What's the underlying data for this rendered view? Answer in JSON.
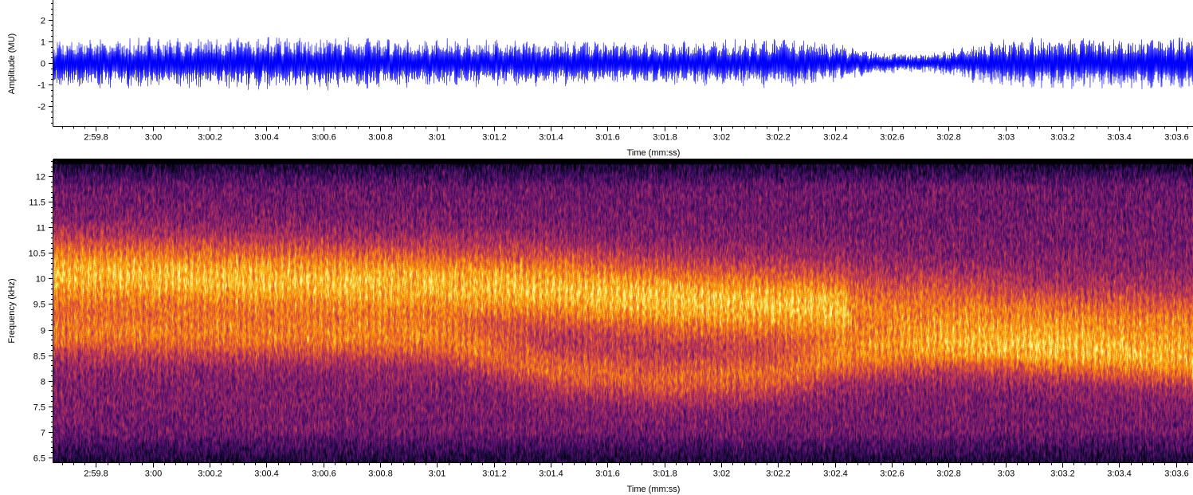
{
  "colors": {
    "waveform": "#0000ff",
    "background": "#ffffff",
    "spectrogram_colormap": [
      "#000004",
      "#1b0c41",
      "#4a0c6b",
      "#781c6d",
      "#a52c60",
      "#cf4446",
      "#ed6925",
      "#fb9b06",
      "#f7d13d",
      "#fcffa4"
    ]
  },
  "chart_data": [
    {
      "type": "line",
      "name": "waveform",
      "ylabel": "Amplitude (MU)",
      "xlabel": "Time (mm:ss)",
      "y_ticks": [
        "-2",
        "-1",
        "0",
        "1",
        "2"
      ],
      "y_tick_values": [
        -2,
        -1,
        0,
        1,
        2
      ],
      "ylim": [
        -2.9,
        2.9
      ],
      "xlim_seconds": [
        179.65,
        183.66
      ],
      "x_tick_labels": [
        "2:59.8",
        "3:00",
        "3:00.2",
        "3:00.4",
        "3:00.6",
        "3:00.8",
        "3:01",
        "3:01.2",
        "3:01.4",
        "3:01.6",
        "3:01.8",
        "3:02",
        "3:02.2",
        "3:02.4",
        "3:02.6",
        "3:02.8",
        "3:03",
        "3:03.2",
        "3:03.4",
        "3:03.6"
      ],
      "x_tick_seconds": [
        179.8,
        180.0,
        180.2,
        180.4,
        180.6,
        180.8,
        181.0,
        181.2,
        181.4,
        181.6,
        181.8,
        182.0,
        182.2,
        182.4,
        182.6,
        182.8,
        183.0,
        183.2,
        183.4,
        183.6
      ],
      "envelope": {
        "x_seconds": [
          179.65,
          180.0,
          180.4,
          180.6,
          180.8,
          181.0,
          181.4,
          181.8,
          182.0,
          182.2,
          182.3,
          182.45,
          182.6,
          182.7,
          182.8,
          182.9,
          183.0,
          183.2,
          183.4,
          183.66
        ],
        "amplitude": [
          1.15,
          1.2,
          1.25,
          1.3,
          1.2,
          1.15,
          1.1,
          1.05,
          1.1,
          1.2,
          1.15,
          0.8,
          0.5,
          0.45,
          0.65,
          1.0,
          1.15,
          1.25,
          1.25,
          1.3
        ]
      }
    },
    {
      "type": "heatmap",
      "name": "spectrogram",
      "ylabel": "Frequency (kHz)",
      "xlabel": "Time (mm:ss)",
      "y_ticks": [
        "6.5",
        "7",
        "7.5",
        "8",
        "8.5",
        "9",
        "9.5",
        "10",
        "10.5",
        "11",
        "11.5",
        "12"
      ],
      "y_tick_values": [
        6.5,
        7,
        7.5,
        8,
        8.5,
        9,
        9.5,
        10,
        10.5,
        11,
        11.5,
        12
      ],
      "ylim_khz": [
        6.4,
        12.35
      ],
      "xlim_seconds": [
        179.65,
        183.66
      ],
      "x_tick_labels": [
        "2:59.8",
        "3:00",
        "3:00.2",
        "3:00.4",
        "3:00.6",
        "3:00.8",
        "3:01",
        "3:01.2",
        "3:01.4",
        "3:01.6",
        "3:01.8",
        "3:02",
        "3:02.2",
        "3:02.4",
        "3:02.6",
        "3:02.8",
        "3:03",
        "3:03.2",
        "3:03.4",
        "3:03.6"
      ],
      "x_tick_seconds": [
        179.8,
        180.0,
        180.2,
        180.4,
        180.6,
        180.8,
        181.0,
        181.2,
        181.4,
        181.6,
        181.8,
        182.0,
        182.2,
        182.4,
        182.6,
        182.8,
        183.0,
        183.2,
        183.4,
        183.6
      ],
      "energy_band": {
        "x_seconds": [
          179.65,
          181.0,
          181.4,
          181.8,
          182.2,
          182.5,
          182.8,
          183.2,
          183.66
        ],
        "center_khz": [
          10.1,
          9.9,
          9.8,
          9.6,
          9.5,
          9.4,
          9.3,
          9.1,
          9.0
        ],
        "secondary_center_khz": [
          8.9,
          8.8,
          8.2,
          8.0,
          8.1,
          8.5,
          8.6,
          8.5,
          8.3
        ]
      }
    }
  ],
  "labels": {
    "top_xlabel": "Time (mm:ss)",
    "bottom_xlabel": "Time (mm:ss)",
    "top_ylabel": "Amplitude (MU)",
    "bottom_ylabel": "Frequency (kHz)"
  }
}
